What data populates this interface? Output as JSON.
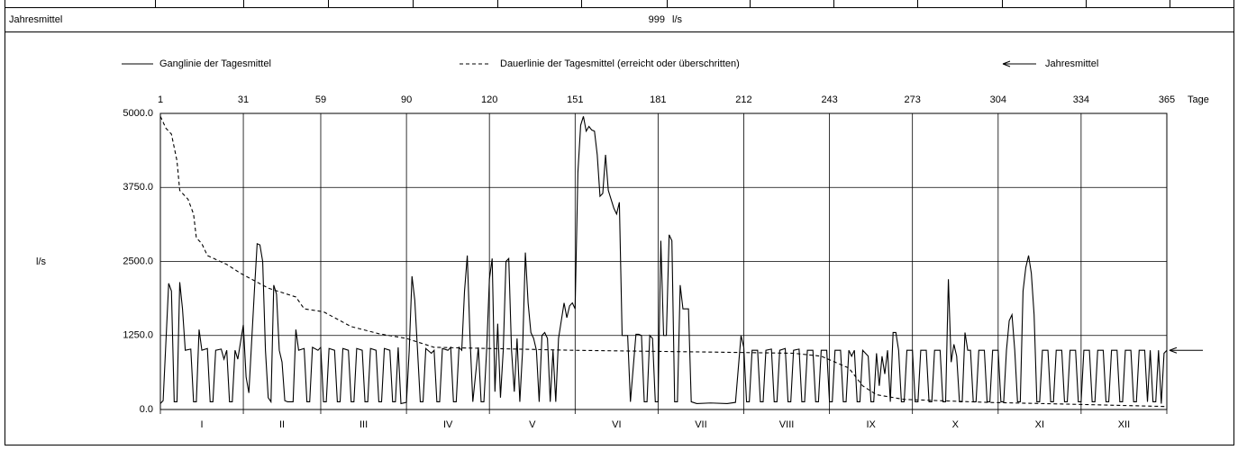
{
  "chart_data": {
    "type": "line",
    "annual_mean": {
      "label": "Jahresmittel",
      "value": 999,
      "unit": "l/s"
    },
    "ylabel": "l/s",
    "xlabel": "Tage",
    "xlim": [
      1,
      365
    ],
    "xticks": [
      1,
      31,
      59,
      90,
      120,
      151,
      181,
      212,
      243,
      273,
      304,
      334,
      365
    ],
    "ylim": [
      0,
      5000
    ],
    "yticks": [
      {
        "value": 0,
        "label": "0.0"
      },
      {
        "value": 1250,
        "label": "1250.0"
      },
      {
        "value": 2500,
        "label": "2500.0"
      },
      {
        "value": 3750,
        "label": "3750.0"
      },
      {
        "value": 5000,
        "label": "5000.0"
      }
    ],
    "months": [
      "I",
      "II",
      "III",
      "IV",
      "V",
      "VI",
      "VII",
      "VIII",
      "IX",
      "X",
      "XI",
      "XII"
    ],
    "grid": true,
    "series": [
      {
        "name": "Ganglinie der Tagesmittel",
        "color": "#000000",
        "style": "solid",
        "x": [
          1,
          2,
          4,
          5,
          6,
          7,
          8,
          9,
          10,
          12,
          13,
          14,
          15,
          16,
          18,
          19,
          20,
          21,
          23,
          24,
          25,
          26,
          27,
          28,
          29,
          31,
          32,
          33,
          35,
          36,
          37,
          38,
          39,
          40,
          41,
          42,
          43,
          44,
          45,
          46,
          47,
          49,
          50,
          51,
          53,
          54,
          55,
          56,
          58,
          59,
          60,
          61,
          62,
          64,
          65,
          66,
          67,
          69,
          70,
          71,
          72,
          74,
          75,
          76,
          77,
          79,
          80,
          81,
          82,
          84,
          85,
          86,
          87,
          88,
          90,
          91,
          92,
          93,
          94,
          95,
          96,
          97,
          99,
          100,
          101,
          102,
          103,
          105,
          106,
          107,
          108,
          109,
          110,
          111,
          112,
          113,
          114,
          116,
          117,
          118,
          119,
          120,
          121,
          122,
          123,
          124,
          125,
          126,
          127,
          128,
          129,
          130,
          131,
          132,
          133,
          134,
          135,
          136,
          137,
          138,
          139,
          140,
          141,
          142,
          143,
          144,
          145,
          146,
          147,
          148,
          149,
          150,
          151,
          152,
          153,
          154,
          155,
          156,
          157,
          158,
          159,
          160,
          161,
          162,
          163,
          164,
          165,
          166,
          167,
          168,
          169,
          170,
          171,
          173,
          174,
          175,
          176,
          177,
          178,
          179,
          180,
          181,
          182,
          183,
          184,
          185,
          186,
          187,
          188,
          189,
          190,
          191,
          192,
          193,
          195,
          200,
          206,
          209,
          211,
          212,
          213,
          214,
          215,
          217,
          218,
          219,
          220,
          222,
          223,
          224,
          225,
          227,
          228,
          229,
          230,
          232,
          233,
          234,
          235,
          237,
          238,
          239,
          240,
          242,
          243,
          244,
          245,
          247,
          248,
          249,
          250,
          251,
          252,
          253,
          254,
          255,
          257,
          258,
          259,
          260,
          261,
          262,
          263,
          264,
          265,
          266,
          267,
          268,
          269,
          270,
          271,
          273,
          274,
          275,
          276,
          278,
          279,
          280,
          281,
          283,
          284,
          285,
          286,
          287,
          288,
          289,
          290,
          291,
          292,
          293,
          294,
          295,
          296,
          297,
          299,
          300,
          301,
          302,
          304,
          305,
          306,
          307,
          308,
          309,
          310,
          311,
          312,
          313,
          314,
          315,
          316,
          317,
          318,
          319,
          320,
          322,
          323,
          324,
          325,
          327,
          328,
          329,
          330,
          332,
          333,
          334,
          335,
          337,
          338,
          339,
          340,
          342,
          343,
          344,
          345,
          347,
          348,
          349,
          350,
          352,
          353,
          354,
          355,
          357,
          358,
          359,
          360,
          361,
          362,
          363,
          364,
          365
        ],
        "values": [
          100,
          150,
          2130,
          2000,
          130,
          130,
          2150,
          1700,
          1000,
          1020,
          130,
          130,
          1350,
          1000,
          1030,
          130,
          130,
          1000,
          1020,
          850,
          1000,
          130,
          130,
          1000,
          850,
          1430,
          550,
          280,
          2000,
          2800,
          2780,
          2500,
          1000,
          200,
          130,
          2100,
          1950,
          1000,
          800,
          150,
          130,
          130,
          1350,
          1000,
          1030,
          130,
          130,
          1050,
          1000,
          1050,
          130,
          130,
          1030,
          1000,
          130,
          130,
          1030,
          1000,
          130,
          130,
          1030,
          1000,
          130,
          130,
          1030,
          1000,
          130,
          130,
          1030,
          1000,
          130,
          130,
          1050,
          100,
          120,
          1000,
          2250,
          1850,
          1000,
          130,
          130,
          1030,
          950,
          1000,
          130,
          130,
          1030,
          1000,
          1050,
          130,
          130,
          1050,
          1000,
          2000,
          2600,
          1200,
          130,
          1050,
          130,
          130,
          1000,
          2200,
          2550,
          300,
          1450,
          200,
          1000,
          2500,
          2550,
          1000,
          300,
          1200,
          130,
          1000,
          2650,
          1800,
          1300,
          1200,
          1000,
          130,
          1250,
          1300,
          1200,
          130,
          1000,
          130,
          1200,
          1500,
          1800,
          1550,
          1750,
          1800,
          1700,
          4000,
          4800,
          4950,
          4700,
          4780,
          4720,
          4700,
          4300,
          3600,
          3650,
          4300,
          3700,
          3550,
          3400,
          3300,
          3500,
          1250,
          1250,
          1250,
          130,
          1270,
          1270,
          1250,
          130,
          130,
          1250,
          1200,
          130,
          130,
          2850,
          1250,
          1250,
          2950,
          2850,
          130,
          130,
          2100,
          1700,
          1700,
          1700,
          130,
          100,
          110,
          100,
          120,
          1250,
          1050,
          130,
          130,
          1000,
          1000,
          130,
          130,
          1000,
          1020,
          130,
          130,
          1000,
          1030,
          130,
          130,
          1000,
          1020,
          130,
          130,
          1000,
          1000,
          130,
          130,
          1000,
          1000,
          130,
          130,
          1000,
          1000,
          130,
          130,
          1000,
          900,
          1000,
          130,
          130,
          1000,
          900,
          130,
          130,
          950,
          400,
          900,
          600,
          1000,
          130,
          1300,
          1300,
          1000,
          130,
          130,
          1000,
          1000,
          130,
          130,
          1000,
          1000,
          130,
          130,
          1000,
          1000,
          130,
          130,
          2200,
          800,
          1100,
          900,
          130,
          130,
          1300,
          1000,
          1000,
          130,
          130,
          1000,
          1000,
          130,
          130,
          1000,
          1000,
          130,
          130,
          1000,
          1500,
          1600,
          1000,
          130,
          130,
          2000,
          2400,
          2600,
          2300,
          1600,
          130,
          130,
          1000,
          1000,
          130,
          130,
          1000,
          1000,
          130,
          130,
          1000,
          1000,
          130,
          130,
          1000,
          1000,
          130,
          130,
          1000,
          1000,
          130,
          130,
          1000,
          1000,
          130,
          130,
          1000,
          1000,
          130,
          130,
          1000,
          1000,
          130,
          1000,
          130,
          130,
          1000,
          100,
          950,
          1000
        ]
      },
      {
        "name": "Dauerlinie der Tagesmittel (erreicht oder überschritten)",
        "color": "#000000",
        "style": "dashed",
        "x": [
          1,
          3,
          5,
          7,
          8,
          11,
          13,
          14,
          16,
          18,
          25,
          30,
          40,
          50,
          53,
          60,
          70,
          80,
          90,
          100,
          150,
          200,
          230,
          240,
          250,
          255,
          260,
          270,
          300,
          330,
          365
        ],
        "values": [
          4950,
          4750,
          4650,
          4200,
          3700,
          3550,
          3300,
          2900,
          2800,
          2600,
          2450,
          2300,
          2050,
          1900,
          1700,
          1650,
          1400,
          1280,
          1200,
          1050,
          1000,
          970,
          950,
          900,
          700,
          400,
          250,
          170,
          120,
          90,
          50
        ]
      }
    ]
  }
}
